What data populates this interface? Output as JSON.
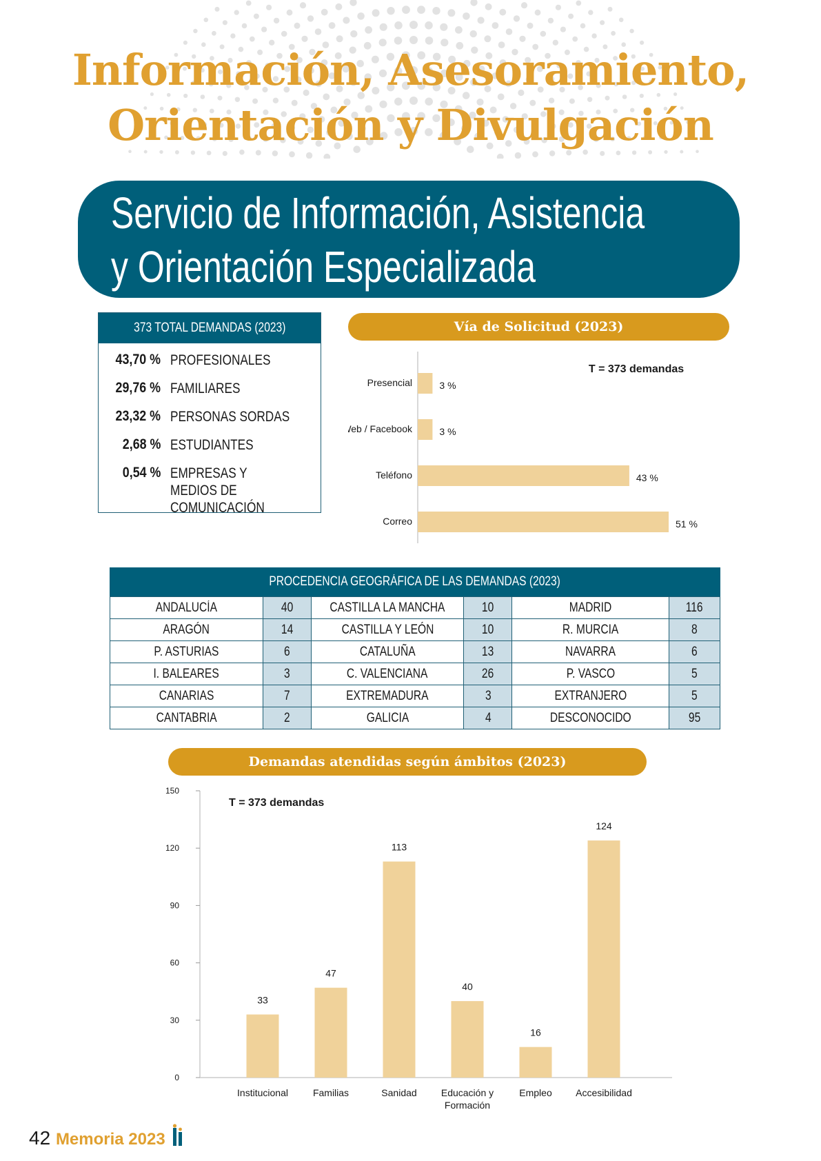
{
  "header": {
    "title_line1": "Información, Asesoramiento,",
    "title_line2": "Orientación y Divulgación",
    "section_line1": "Servicio de Información, Asistencia",
    "section_line2": "y Orientación Especializada"
  },
  "demands_box": {
    "title": "373 TOTAL DEMANDAS (2023)",
    "items": [
      {
        "pct": "43,70 %",
        "label": "PROFESIONALES"
      },
      {
        "pct": "29,76 %",
        "label": "FAMILIARES"
      },
      {
        "pct": "23,32 %",
        "label": "PERSONAS SORDAS"
      },
      {
        "pct": "2,68 %",
        "label": "ESTUDIANTES"
      },
      {
        "pct": "0,54 %",
        "label": "EMPRESAS Y MEDIOS DE COMUNICACIÓN"
      }
    ]
  },
  "geo": {
    "title": "PROCEDENCIA GEOGRÁFICA DE LAS DEMANDAS (2023)",
    "rows": [
      [
        "ANDALUCÍA",
        "40",
        "CASTILLA LA MANCHA",
        "10",
        "MADRID",
        "116"
      ],
      [
        "ARAGÓN",
        "14",
        "CASTILLA Y LEÓN",
        "10",
        "R. MURCIA",
        "8"
      ],
      [
        "P. ASTURIAS",
        "6",
        "CATALUÑA",
        "13",
        "NAVARRA",
        "6"
      ],
      [
        "I. BALEARES",
        "3",
        "C. VALENCIANA",
        "26",
        "P. VASCO",
        "5"
      ],
      [
        "CANARIAS",
        "7",
        "EXTREMADURA",
        "3",
        "EXTRANJERO",
        "5"
      ],
      [
        "CANTABRIA",
        "2",
        "GALICIA",
        "4",
        "DESCONOCIDO",
        "95"
      ]
    ]
  },
  "chart_data": [
    {
      "type": "bar",
      "orientation": "horizontal",
      "title": "Vía de Solicitud (2023)",
      "annotation": "T = 373 demandas",
      "categories": [
        "Presencial",
        "Web / Facebook",
        "Teléfono",
        "Correo"
      ],
      "values": [
        3,
        3,
        43,
        51
      ],
      "value_labels": [
        "3 %",
        "3 %",
        "43 %",
        "51 %"
      ],
      "xlim": [
        0,
        51
      ],
      "color": "#f0d29a"
    },
    {
      "type": "bar",
      "title": "Demandas atendidas según ámbitos (2023)",
      "annotation": "T = 373 demandas",
      "categories": [
        "Institucional",
        "Familias",
        "Sanidad",
        "Educación y Formación",
        "Empleo",
        "Accesibilidad"
      ],
      "values": [
        33,
        47,
        113,
        40,
        16,
        124
      ],
      "ylim": [
        0,
        150
      ],
      "yticks": [
        0,
        30,
        60,
        90,
        120,
        150
      ],
      "color": "#f0d29a"
    }
  ],
  "footer": {
    "page_number": "42",
    "label": "Memoria 2023"
  },
  "colors": {
    "accent_gold": "#e0a030",
    "pill_gold": "#d89a1e",
    "teal": "#005f7a",
    "bar": "#f0d29a",
    "cell_blue": "#cbdde6"
  }
}
